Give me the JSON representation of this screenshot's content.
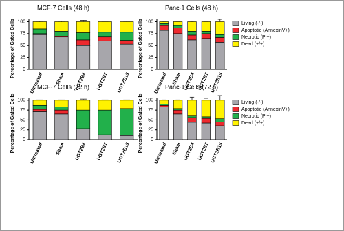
{
  "chart_data": [
    {
      "type": "stacked-bar",
      "title": "MCF-7 Cells (48 h)",
      "y_label": "Percentage of Gated Cells",
      "categories": [
        "Untreated",
        "Sham",
        "UGT2B4",
        "UGT2B7",
        "UGT2B15"
      ],
      "ylim": [
        0,
        105
      ],
      "yticks": [
        0,
        25,
        50,
        75,
        100
      ],
      "legend": false,
      "series": [
        {
          "name": "Living (-/-)",
          "color": "#a7a6ab",
          "values": [
            73,
            68,
            50,
            60,
            53
          ],
          "errors": [
            2,
            2,
            4,
            2,
            2
          ]
        },
        {
          "name": "Apoptotic (AnnexinV+)",
          "color": "#ee2a2f",
          "values": [
            2,
            2,
            12,
            8,
            8
          ]
        },
        {
          "name": "Necrotic (PI+)",
          "color": "#22b04b",
          "values": [
            10,
            10,
            15,
            10,
            17
          ]
        },
        {
          "name": "Dead (+/+)",
          "color": "#fff200",
          "values": [
            15,
            20,
            23,
            22,
            22
          ],
          "errors": [
            1,
            1,
            3,
            1,
            1
          ]
        }
      ]
    },
    {
      "type": "stacked-bar",
      "title": "Panc-1 Cells (48 h)",
      "y_label": "Percentage of Gated Cells",
      "categories": [
        "Untreated",
        "Sham",
        "UGT2B4",
        "UGT2B7",
        "UGT2B15"
      ],
      "ylim": [
        0,
        105
      ],
      "yticks": [
        0,
        25,
        50,
        75,
        100
      ],
      "legend": true,
      "series": [
        {
          "name": "Living (-/-)",
          "color": "#a7a6ab",
          "values": [
            82,
            75,
            62,
            65,
            57
          ],
          "errors": [
            1,
            2,
            2,
            2,
            3
          ]
        },
        {
          "name": "Apoptotic (AnnexinV+)",
          "color": "#ee2a2f",
          "values": [
            10,
            12,
            10,
            10,
            10
          ]
        },
        {
          "name": "Necrotic (PI+)",
          "color": "#22b04b",
          "values": [
            4,
            5,
            8,
            5,
            6
          ]
        },
        {
          "name": "Dead (+/+)",
          "color": "#fff200",
          "values": [
            4,
            8,
            20,
            20,
            27
          ],
          "errors": [
            1,
            1,
            1,
            1,
            5
          ]
        }
      ]
    },
    {
      "type": "stacked-bar",
      "title": "MCF-7 Cells (72 h)",
      "y_label": "Percentage of Gated Cells",
      "categories": [
        "Untreated",
        "Sham",
        "UGT2B4",
        "UGT2B7",
        "UGT2B15"
      ],
      "ylim": [
        0,
        105
      ],
      "yticks": [
        0,
        25,
        50,
        75,
        100
      ],
      "legend": false,
      "series": [
        {
          "name": "Living (-/-)",
          "color": "#a7a6ab",
          "values": [
            71,
            65,
            28,
            12,
            10
          ],
          "errors": [
            3,
            4,
            15,
            1,
            1
          ]
        },
        {
          "name": "Apoptotic (AnnexinV+)",
          "color": "#ee2a2f",
          "values": [
            6,
            10,
            0,
            0,
            0
          ]
        },
        {
          "name": "Necrotic (PI+)",
          "color": "#22b04b",
          "values": [
            10,
            8,
            47,
            63,
            69
          ]
        },
        {
          "name": "Dead (+/+)",
          "color": "#fff200",
          "values": [
            13,
            17,
            25,
            25,
            21
          ],
          "errors": [
            1,
            1,
            3,
            1,
            1
          ]
        }
      ]
    },
    {
      "type": "stacked-bar",
      "title": "Panc-1 Cells (72 h)",
      "y_label": "Percentage of Gated Cells",
      "categories": [
        "Untreated",
        "Sham",
        "UGT2B4",
        "UGT2B7",
        "UGT2B15"
      ],
      "ylim": [
        0,
        105
      ],
      "yticks": [
        0,
        25,
        50,
        75,
        100
      ],
      "legend": true,
      "series": [
        {
          "name": "Living (-/-)",
          "color": "#a7a6ab",
          "values": [
            83,
            65,
            44,
            42,
            35
          ],
          "errors": [
            2,
            2,
            4,
            4,
            5
          ]
        },
        {
          "name": "Apoptotic (AnnexinV+)",
          "color": "#ee2a2f",
          "values": [
            4,
            10,
            12,
            12,
            10
          ]
        },
        {
          "name": "Necrotic (PI+)",
          "color": "#22b04b",
          "values": [
            3,
            4,
            4,
            4,
            8
          ]
        },
        {
          "name": "Dead (+/+)",
          "color": "#fff200",
          "values": [
            10,
            21,
            40,
            42,
            47
          ],
          "errors": [
            1,
            1,
            8,
            5,
            12
          ]
        }
      ]
    }
  ]
}
